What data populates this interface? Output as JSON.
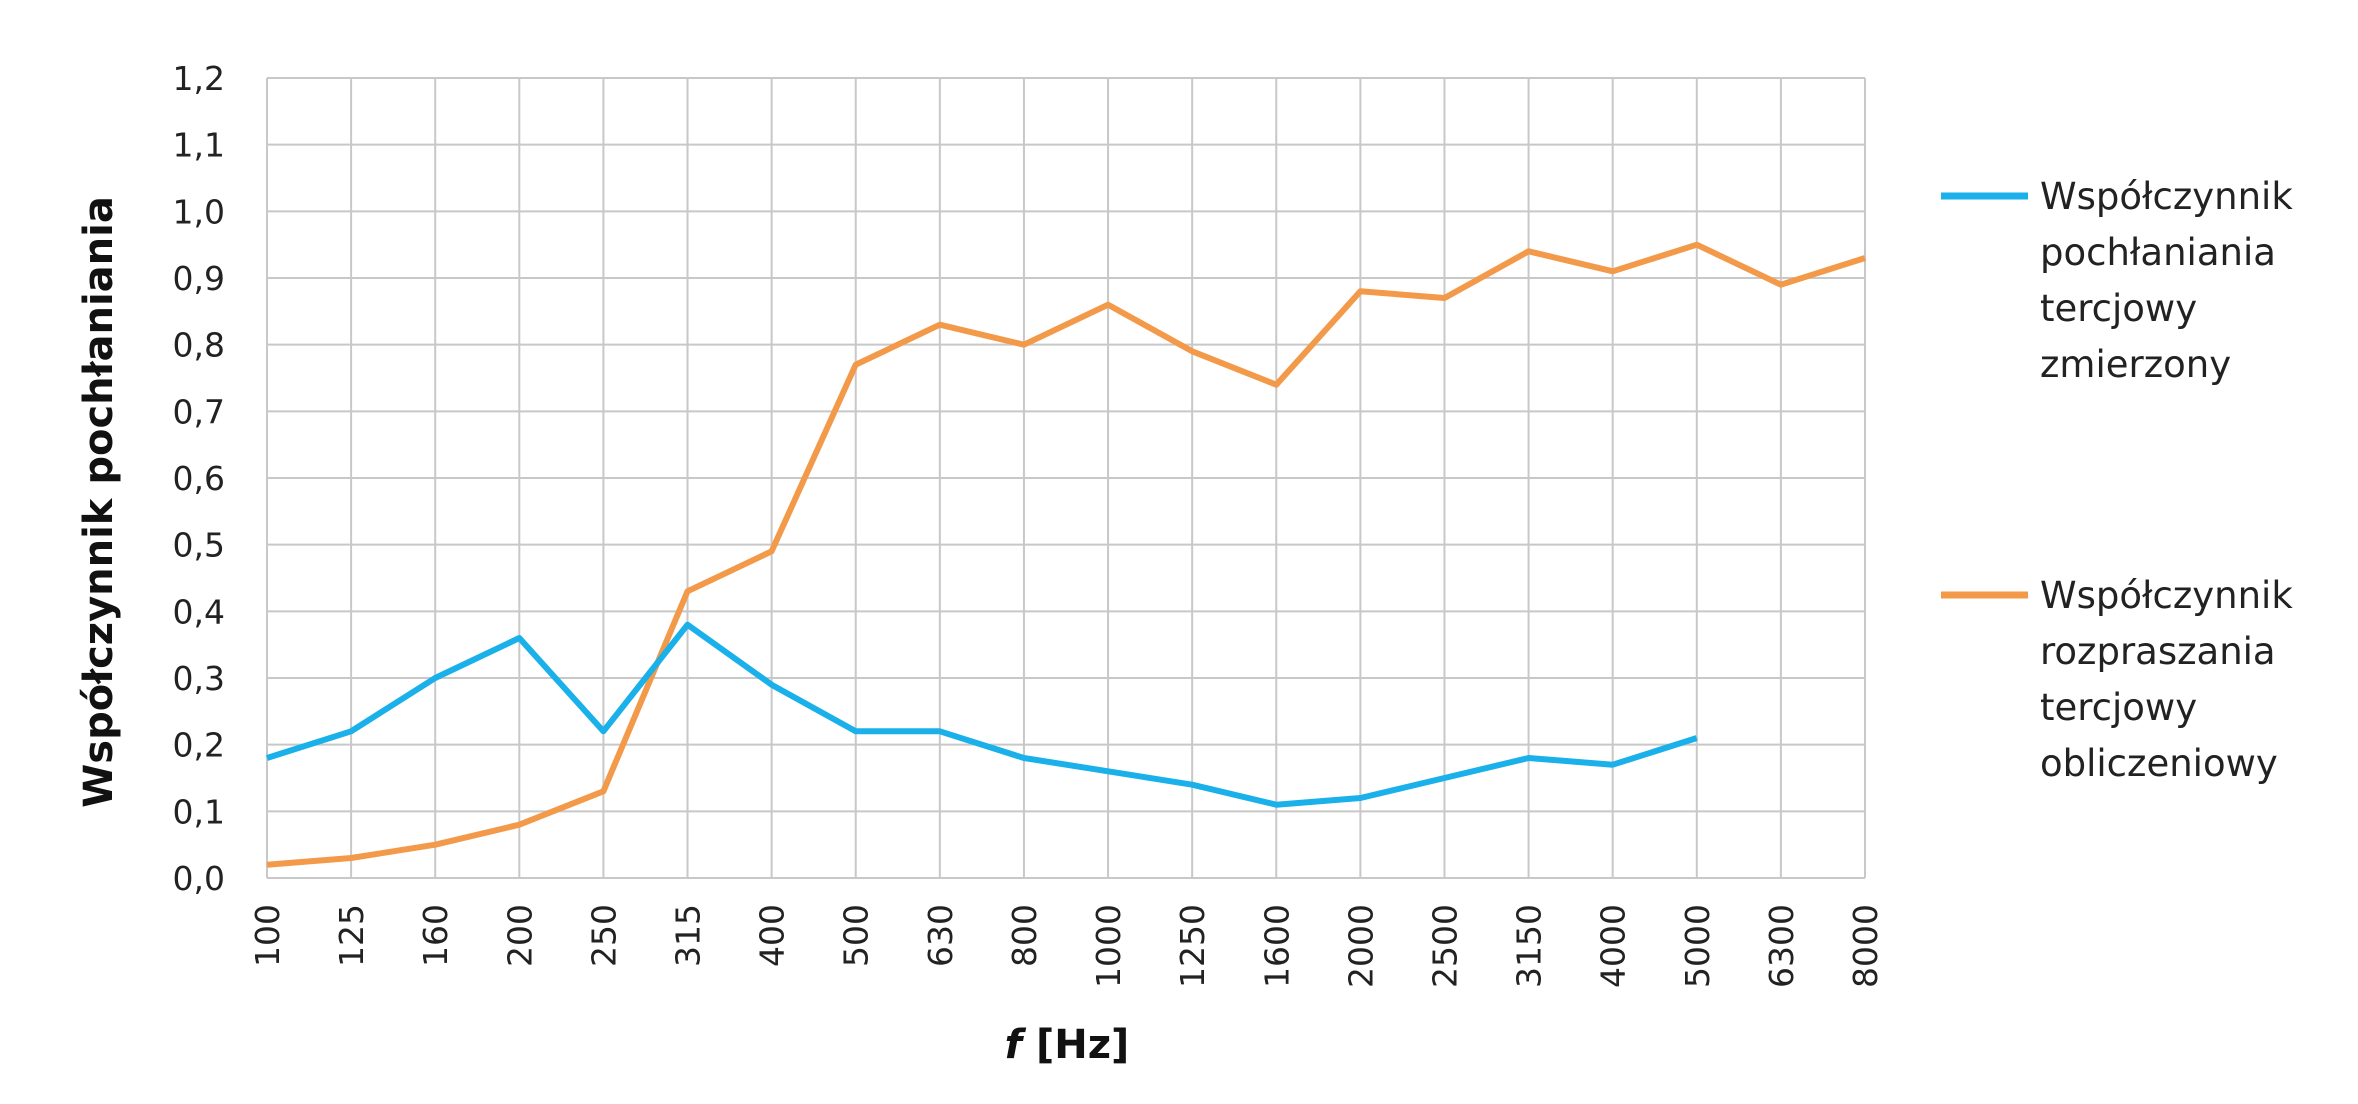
{
  "chart_data": {
    "type": "line",
    "title": "",
    "xlabel_italic": "f",
    "xlabel_rest": " [Hz]",
    "ylabel": "Współczynnik pochłaniania",
    "categories": [
      "100",
      "125",
      "160",
      "200",
      "250",
      "315",
      "400",
      "500",
      "630",
      "800",
      "1000",
      "1250",
      "1600",
      "2000",
      "2500",
      "3150",
      "4000",
      "5000",
      "6300",
      "8000"
    ],
    "ylim": [
      0,
      1.2
    ],
    "yticks": [
      "0,0",
      "0,1",
      "0,2",
      "0,3",
      "0,4",
      "0,5",
      "0,6",
      "0,7",
      "0,8",
      "0,9",
      "1,0",
      "1,1",
      "1,2"
    ],
    "grid": true,
    "legend_position": "right",
    "series": [
      {
        "name_lines": [
          "Współczynnik",
          "pochłaniania",
          "tercjowy",
          "zmierzony"
        ],
        "color": "#1ab0ea",
        "values": [
          0.18,
          0.22,
          0.3,
          0.36,
          0.22,
          0.38,
          0.29,
          0.22,
          0.22,
          0.18,
          0.16,
          0.14,
          0.11,
          0.12,
          0.15,
          0.18,
          0.17,
          0.21,
          null,
          null
        ]
      },
      {
        "name_lines": [
          "Współczynnik",
          "rozpraszania",
          "tercjowy",
          "obliczeniowy"
        ],
        "color": "#f39a4a",
        "values": [
          0.02,
          0.03,
          0.05,
          0.08,
          0.13,
          0.43,
          0.49,
          0.77,
          0.83,
          0.8,
          0.86,
          0.79,
          0.74,
          0.88,
          0.87,
          0.94,
          0.91,
          0.95,
          0.89,
          0.93
        ]
      }
    ]
  }
}
